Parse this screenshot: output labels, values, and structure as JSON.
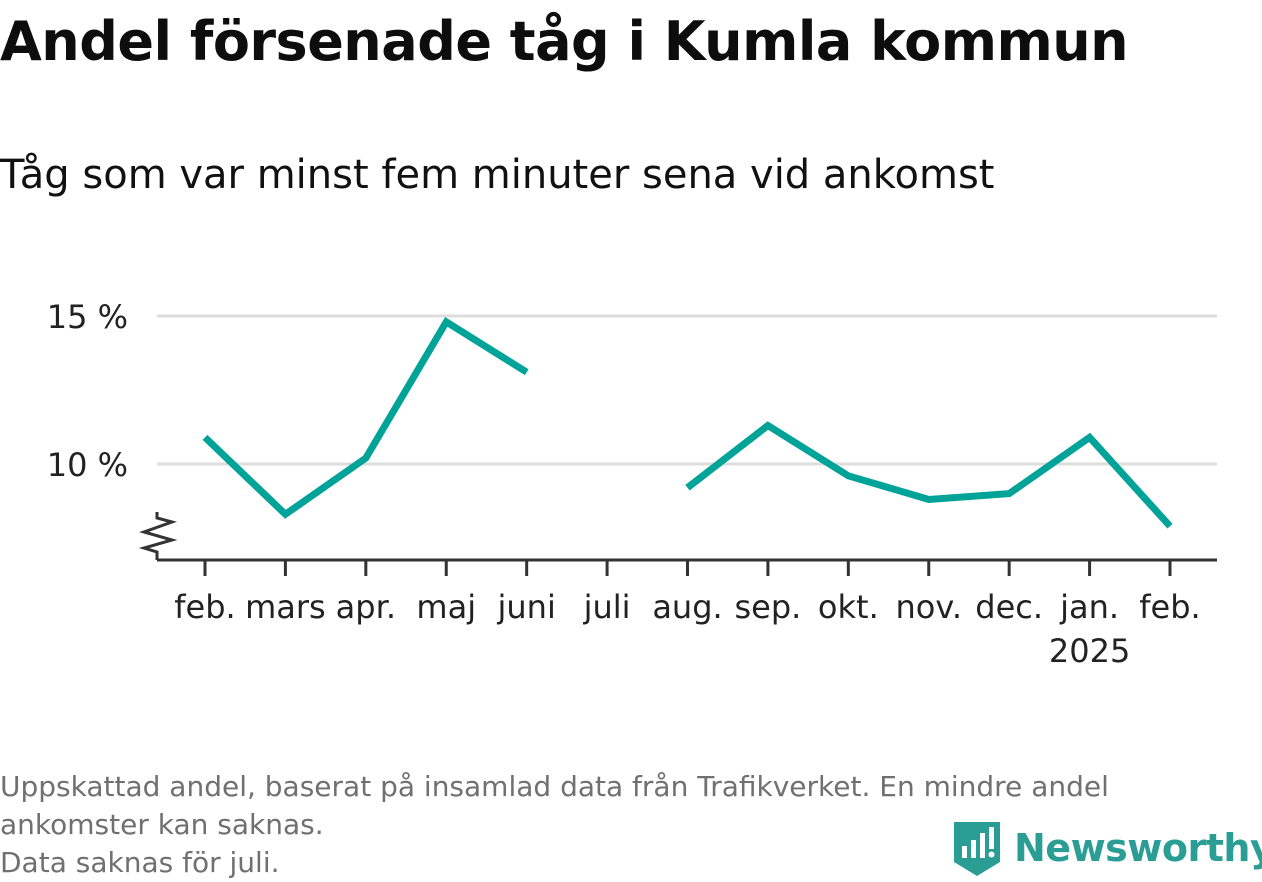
{
  "title": "Andel försenade tåg i Kumla kommun",
  "subtitle": "Tåg som var minst fem minuter sena vid ankomst",
  "footer": {
    "note_line1": "Uppskattad andel, baserat på insamlad data från Trafikverket. En mindre andel",
    "note_line2": "ankomster kan saknas.",
    "note_line3": "Data saknas för juli."
  },
  "brand": {
    "name": "Newsworthy",
    "logo_icon": "newsworthy-logo-icon"
  },
  "colors": {
    "line": "#00A398",
    "grid": "#dddddd",
    "axis": "#333333",
    "text": "#111111",
    "muted": "#707070",
    "brand": "#2a9d94"
  },
  "chart_data": {
    "type": "line",
    "title": "Andel försenade tåg i Kumla kommun",
    "subtitle": "Tåg som var minst fem minuter sena vid ankomst",
    "xlabel": "",
    "ylabel": "",
    "categories": [
      "feb.",
      "mars",
      "apr.",
      "maj",
      "juni",
      "juli",
      "aug.",
      "sep.",
      "okt.",
      "nov.",
      "dec.",
      "jan.",
      "feb."
    ],
    "category_sublabels": [
      "",
      "",
      "",
      "",
      "",
      "",
      "",
      "",
      "",
      "",
      "",
      "2025",
      ""
    ],
    "series": [
      {
        "values": [
          10.9,
          8.3,
          10.2,
          14.8,
          13.1,
          null,
          9.2,
          11.3,
          9.6,
          8.8,
          9.0,
          10.9,
          7.9
        ]
      }
    ],
    "y_ticks": [
      10,
      15
    ],
    "y_tick_labels": [
      "10 %",
      "15 %"
    ],
    "ylim": [
      6.8,
      15
    ],
    "y_axis_broken": true,
    "grid": true,
    "legend": "none"
  }
}
